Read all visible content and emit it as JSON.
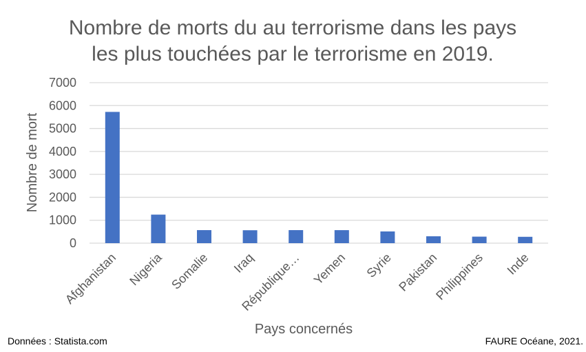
{
  "chart_data": {
    "type": "bar",
    "title": [
      "Nombre de morts du au terrorisme dans les pays",
      "les plus touchées par le terrorisme en 2019."
    ],
    "xlabel": "Pays concernés",
    "ylabel": "Nombre de mort",
    "categories": [
      "Afghanistan",
      "Nigeria",
      "Somalie",
      "Iraq",
      "République…",
      "Yemen",
      "Syrie",
      "Pakistan",
      "Philippines",
      "Inde"
    ],
    "values": [
      5725,
      1245,
      569,
      564,
      569,
      568,
      511,
      300,
      284,
      277
    ],
    "ylim": [
      0,
      7000
    ],
    "yticks": [
      0,
      1000,
      2000,
      3000,
      4000,
      5000,
      6000,
      7000
    ],
    "grid": true,
    "bar_color": "#4472C4",
    "grid_color": "#D9D9D9"
  },
  "footer": {
    "source": "Données : Statista.com",
    "author": "FAURE Océane, 2021."
  }
}
